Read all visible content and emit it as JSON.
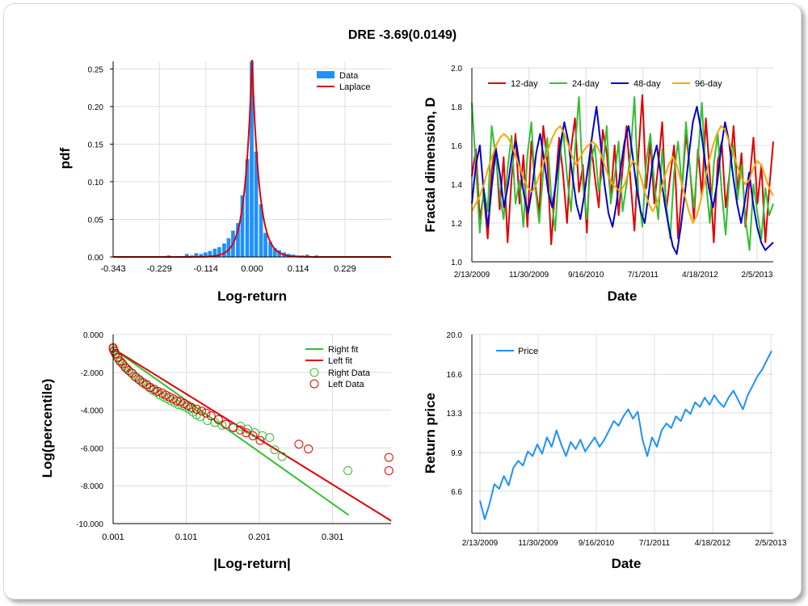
{
  "title": "DRE -3.69(0.0149)",
  "colors": {
    "blue": "#1e90ff",
    "red": "#e00000",
    "green": "#33c033",
    "navy": "#0000cc",
    "orange": "#ffa500"
  },
  "chart_data": [
    {
      "type": "bar",
      "id": "pdf",
      "xlabel": "Log-return",
      "ylabel": "pdf",
      "xlim": [
        -0.343,
        0.343
      ],
      "ylim": [
        0,
        0.26
      ],
      "x_ticks": [
        "-0.343",
        "-0.229",
        "-0.114",
        "0.000",
        "0.114",
        "0.229"
      ],
      "x_tick_values": [
        -0.343,
        -0.229,
        -0.114,
        0.0,
        0.114,
        0.229
      ],
      "y_ticks": [
        "0.00",
        "0.05",
        "0.10",
        "0.15",
        "0.20",
        "0.25"
      ],
      "y_tick_values": [
        0,
        0.05,
        0.1,
        0.15,
        0.2,
        0.25
      ],
      "legend": [
        "Data",
        "Laplace"
      ],
      "legend_position": "top-right",
      "bin_width": 0.0114,
      "bins": [
        [
          -0.308,
          0.001
        ],
        [
          -0.285,
          0.001
        ],
        [
          -0.262,
          0.001
        ],
        [
          -0.24,
          0.001
        ],
        [
          -0.205,
          0.002
        ],
        [
          -0.182,
          0.001
        ],
        [
          -0.16,
          0.004
        ],
        [
          -0.148,
          0.002
        ],
        [
          -0.137,
          0.005
        ],
        [
          -0.125,
          0.004
        ],
        [
          -0.114,
          0.006
        ],
        [
          -0.103,
          0.008
        ],
        [
          -0.091,
          0.011
        ],
        [
          -0.08,
          0.013
        ],
        [
          -0.068,
          0.018
        ],
        [
          -0.057,
          0.025
        ],
        [
          -0.046,
          0.035
        ],
        [
          -0.034,
          0.045
        ],
        [
          -0.023,
          0.082
        ],
        [
          -0.011,
          0.13
        ],
        [
          0.0,
          0.26
        ],
        [
          0.011,
          0.14
        ],
        [
          0.023,
          0.07
        ],
        [
          0.034,
          0.032
        ],
        [
          0.046,
          0.02
        ],
        [
          0.057,
          0.012
        ],
        [
          0.068,
          0.009
        ],
        [
          0.08,
          0.006
        ],
        [
          0.091,
          0.004
        ],
        [
          0.103,
          0.003
        ],
        [
          0.114,
          0.002
        ],
        [
          0.125,
          0.002
        ],
        [
          0.137,
          0.003
        ],
        [
          0.16,
          0.002
        ],
        [
          0.182,
          0.001
        ],
        [
          0.205,
          0.001
        ],
        [
          0.229,
          0.001
        ]
      ],
      "laplace": {
        "peak": 0.262,
        "scale": 0.0175
      }
    },
    {
      "type": "line",
      "id": "fractal",
      "xlabel": "Date",
      "ylabel": "Fractal dimension, D",
      "ylim": [
        1.0,
        2.0
      ],
      "x_ticks": [
        "2/13/2009",
        "11/30/2009",
        "9/16/2010",
        "7/1/2011",
        "4/18/2012",
        "2/5/2013"
      ],
      "y_ticks": [
        "1.0",
        "1.2",
        "1.4",
        "1.6",
        "1.8",
        "2.0"
      ],
      "y_tick_values": [
        1.0,
        1.2,
        1.4,
        1.6,
        1.8,
        2.0
      ],
      "legend_position": "top-left",
      "series": [
        {
          "name": "12-day",
          "color": "#e00000",
          "values": [
            1.44,
            1.58,
            1.22,
            1.35,
            1.12,
            1.47,
            1.6,
            1.27,
            1.54,
            1.1,
            1.43,
            1.66,
            1.3,
            1.55,
            1.18,
            1.62,
            1.4,
            1.25,
            1.7,
            1.52,
            1.09,
            1.38,
            1.64,
            1.45,
            1.2,
            1.58,
            1.74,
            1.36,
            1.5,
            1.15,
            1.62,
            1.44,
            1.28,
            1.68,
            1.56,
            1.33,
            1.6,
            1.24,
            1.48,
            1.7,
            1.42,
            1.16,
            1.55,
            1.86,
            1.38,
            1.62,
            1.3,
            1.5,
            1.72,
            1.26,
            1.44,
            1.6,
            1.12,
            1.38,
            1.66,
            1.48,
            1.22,
            1.58,
            1.34,
            1.74,
            1.45,
            1.1,
            1.52,
            1.62,
            1.28,
            1.46,
            1.7,
            1.36,
            1.56,
            1.18,
            1.42,
            1.64,
            1.3,
            1.5,
            1.1,
            1.38,
            1.62
          ]
        },
        {
          "name": "24-day",
          "color": "#33c033",
          "values": [
            1.82,
            1.5,
            1.15,
            1.38,
            1.26,
            1.7,
            1.55,
            1.35,
            1.22,
            1.48,
            1.65,
            1.3,
            1.42,
            1.18,
            1.55,
            1.72,
            1.38,
            1.2,
            1.46,
            1.64,
            1.34,
            1.16,
            1.5,
            1.68,
            1.44,
            1.26,
            1.58,
            1.85,
            1.4,
            1.22,
            1.52,
            1.6,
            1.36,
            1.48,
            1.7,
            1.3,
            1.44,
            1.62,
            1.26,
            1.4,
            1.55,
            1.85,
            1.35,
            1.18,
            1.52,
            1.66,
            1.4,
            1.22,
            1.58,
            1.3,
            1.12,
            1.46,
            1.62,
            1.38,
            1.72,
            1.48,
            1.28,
            1.54,
            1.82,
            1.42,
            1.2,
            1.5,
            1.66,
            1.36,
            1.14,
            1.46,
            1.6,
            1.32,
            1.5,
            1.22,
            1.06,
            1.4,
            1.25,
            1.12,
            1.38,
            1.24,
            1.3
          ]
        },
        {
          "name": "48-day",
          "color": "#0000cc",
          "values": [
            1.3,
            1.5,
            1.6,
            1.35,
            1.18,
            1.4,
            1.58,
            1.45,
            1.28,
            1.4,
            1.55,
            1.62,
            1.48,
            1.34,
            1.25,
            1.38,
            1.56,
            1.66,
            1.52,
            1.36,
            1.28,
            1.42,
            1.6,
            1.72,
            1.62,
            1.45,
            1.3,
            1.22,
            1.35,
            1.5,
            1.66,
            1.8,
            1.62,
            1.4,
            1.25,
            1.18,
            1.3,
            1.48,
            1.62,
            1.7,
            1.55,
            1.38,
            1.26,
            1.2,
            1.35,
            1.52,
            1.6,
            1.45,
            1.3,
            1.18,
            1.08,
            1.04,
            1.18,
            1.35,
            1.55,
            1.72,
            1.8,
            1.68,
            1.52,
            1.38,
            1.28,
            1.4,
            1.58,
            1.72,
            1.62,
            1.44,
            1.3,
            1.2,
            1.32,
            1.46,
            1.3,
            1.18,
            1.1,
            1.06,
            1.08,
            1.1
          ]
        },
        {
          "name": "96-day",
          "color": "#ffa500",
          "values": [
            1.26,
            1.3,
            1.34,
            1.4,
            1.48,
            1.54,
            1.6,
            1.64,
            1.66,
            1.64,
            1.6,
            1.54,
            1.48,
            1.42,
            1.38,
            1.36,
            1.4,
            1.46,
            1.52,
            1.58,
            1.64,
            1.68,
            1.7,
            1.66,
            1.6,
            1.54,
            1.5,
            1.54,
            1.58,
            1.6,
            1.62,
            1.6,
            1.56,
            1.5,
            1.44,
            1.4,
            1.38,
            1.36,
            1.4,
            1.46,
            1.52,
            1.5,
            1.44,
            1.36,
            1.3,
            1.26,
            1.3,
            1.36,
            1.44,
            1.5,
            1.54,
            1.5,
            1.42,
            1.34,
            1.26,
            1.2,
            1.24,
            1.32,
            1.42,
            1.52,
            1.6,
            1.66,
            1.7,
            1.68,
            1.62,
            1.56,
            1.5,
            1.44,
            1.4,
            1.42,
            1.48,
            1.52,
            1.5,
            1.44,
            1.38,
            1.34
          ]
        }
      ]
    },
    {
      "type": "scatter",
      "id": "tails",
      "xlabel": "|Log-return|",
      "ylabel": "Log(percentile)",
      "xlim": [
        0.001,
        0.381
      ],
      "ylim": [
        -10.0,
        0.0
      ],
      "x_ticks": [
        "0.001",
        "0.101",
        "0.201",
        "0.301"
      ],
      "x_tick_values": [
        0.001,
        0.101,
        0.201,
        0.301
      ],
      "y_ticks": [
        "0.000",
        "-2.000",
        "-4.000",
        "-6.000",
        "-8.000",
        "-10.000"
      ],
      "y_tick_values": [
        0,
        -2,
        -4,
        -6,
        -8,
        -10
      ],
      "legend": [
        "Right fit",
        "Left fit",
        "Right Data",
        "Left Data"
      ],
      "legend_position": "top-right",
      "right_fit": {
        "x": [
          0.001,
          0.323
        ],
        "y": [
          -0.75,
          -9.55
        ],
        "color": "#33c033"
      },
      "left_fit": {
        "x": [
          0.001,
          0.381
        ],
        "y": [
          -0.75,
          -9.85
        ],
        "color": "#e00000"
      },
      "right_data": [
        [
          0.001,
          -0.75
        ],
        [
          0.003,
          -0.9
        ],
        [
          0.005,
          -1.05
        ],
        [
          0.008,
          -1.25
        ],
        [
          0.012,
          -1.45
        ],
        [
          0.016,
          -1.65
        ],
        [
          0.02,
          -1.8
        ],
        [
          0.025,
          -2.0
        ],
        [
          0.03,
          -2.2
        ],
        [
          0.035,
          -2.35
        ],
        [
          0.04,
          -2.5
        ],
        [
          0.045,
          -2.65
        ],
        [
          0.05,
          -2.8
        ],
        [
          0.055,
          -2.95
        ],
        [
          0.06,
          -3.05
        ],
        [
          0.065,
          -3.2
        ],
        [
          0.07,
          -3.3
        ],
        [
          0.075,
          -3.4
        ],
        [
          0.08,
          -3.5
        ],
        [
          0.085,
          -3.6
        ],
        [
          0.09,
          -3.7
        ],
        [
          0.095,
          -3.75
        ],
        [
          0.1,
          -3.85
        ],
        [
          0.105,
          -3.95
        ],
        [
          0.11,
          -4.1
        ],
        [
          0.115,
          -4.25
        ],
        [
          0.12,
          -4.35
        ],
        [
          0.13,
          -4.55
        ],
        [
          0.14,
          -4.65
        ],
        [
          0.15,
          -4.8
        ],
        [
          0.165,
          -4.95
        ],
        [
          0.175,
          -4.85
        ],
        [
          0.185,
          -5.0
        ],
        [
          0.195,
          -5.2
        ],
        [
          0.205,
          -5.35
        ],
        [
          0.215,
          -5.45
        ],
        [
          0.222,
          -6.1
        ],
        [
          0.232,
          -6.45
        ],
        [
          0.322,
          -7.2
        ]
      ],
      "left_data": [
        [
          0.001,
          -0.7
        ],
        [
          0.002,
          -0.85
        ],
        [
          0.004,
          -1.0
        ],
        [
          0.007,
          -1.2
        ],
        [
          0.01,
          -1.4
        ],
        [
          0.014,
          -1.55
        ],
        [
          0.018,
          -1.75
        ],
        [
          0.022,
          -1.9
        ],
        [
          0.027,
          -2.05
        ],
        [
          0.032,
          -2.25
        ],
        [
          0.037,
          -2.4
        ],
        [
          0.042,
          -2.55
        ],
        [
          0.047,
          -2.65
        ],
        [
          0.052,
          -2.8
        ],
        [
          0.057,
          -2.9
        ],
        [
          0.062,
          -3.0
        ],
        [
          0.068,
          -3.1
        ],
        [
          0.073,
          -3.2
        ],
        [
          0.078,
          -3.3
        ],
        [
          0.083,
          -3.4
        ],
        [
          0.088,
          -3.5
        ],
        [
          0.093,
          -3.55
        ],
        [
          0.098,
          -3.65
        ],
        [
          0.103,
          -3.75
        ],
        [
          0.108,
          -3.85
        ],
        [
          0.115,
          -3.95
        ],
        [
          0.122,
          -4.05
        ],
        [
          0.128,
          -4.15
        ],
        [
          0.135,
          -4.3
        ],
        [
          0.145,
          -4.5
        ],
        [
          0.155,
          -4.75
        ],
        [
          0.165,
          -4.9
        ],
        [
          0.175,
          -5.05
        ],
        [
          0.183,
          -5.2
        ],
        [
          0.192,
          -5.35
        ],
        [
          0.202,
          -5.6
        ],
        [
          0.255,
          -5.8
        ],
        [
          0.268,
          -6.05
        ],
        [
          0.378,
          -6.5
        ],
        [
          0.378,
          -7.2
        ]
      ]
    },
    {
      "type": "line",
      "id": "price",
      "xlabel": "Date",
      "ylabel": "Return price",
      "ylim": [
        3.0,
        20.0
      ],
      "x_ticks": [
        "2/13/2009",
        "11/30/2009",
        "9/16/2010",
        "7/1/2011",
        "4/18/2012",
        "2/5/2013"
      ],
      "y_ticks": [
        "20.0",
        "16.6",
        "13.3",
        "9.9",
        "6.6"
      ],
      "y_tick_values": [
        20.0,
        16.6,
        13.3,
        9.9,
        6.6
      ],
      "legend_position": "top-left",
      "series": [
        {
          "name": "Price",
          "color": "#1e90ff",
          "values": [
            5.8,
            4.2,
            5.5,
            7.2,
            6.8,
            7.9,
            7.1,
            8.6,
            9.2,
            8.8,
            10.0,
            9.6,
            10.6,
            9.8,
            11.2,
            10.4,
            11.8,
            10.6,
            9.6,
            10.8,
            10.2,
            11.0,
            10.0,
            10.6,
            11.2,
            10.4,
            11.0,
            11.8,
            12.6,
            12.2,
            13.0,
            13.6,
            12.8,
            13.4,
            11.0,
            9.6,
            11.2,
            10.4,
            11.8,
            12.4,
            12.0,
            13.0,
            12.6,
            13.6,
            13.2,
            14.2,
            13.8,
            14.6,
            14.0,
            14.8,
            14.2,
            13.8,
            14.6,
            15.2,
            14.4,
            13.6,
            14.8,
            15.6,
            16.4,
            17.0,
            17.8,
            18.6
          ]
        }
      ]
    }
  ]
}
